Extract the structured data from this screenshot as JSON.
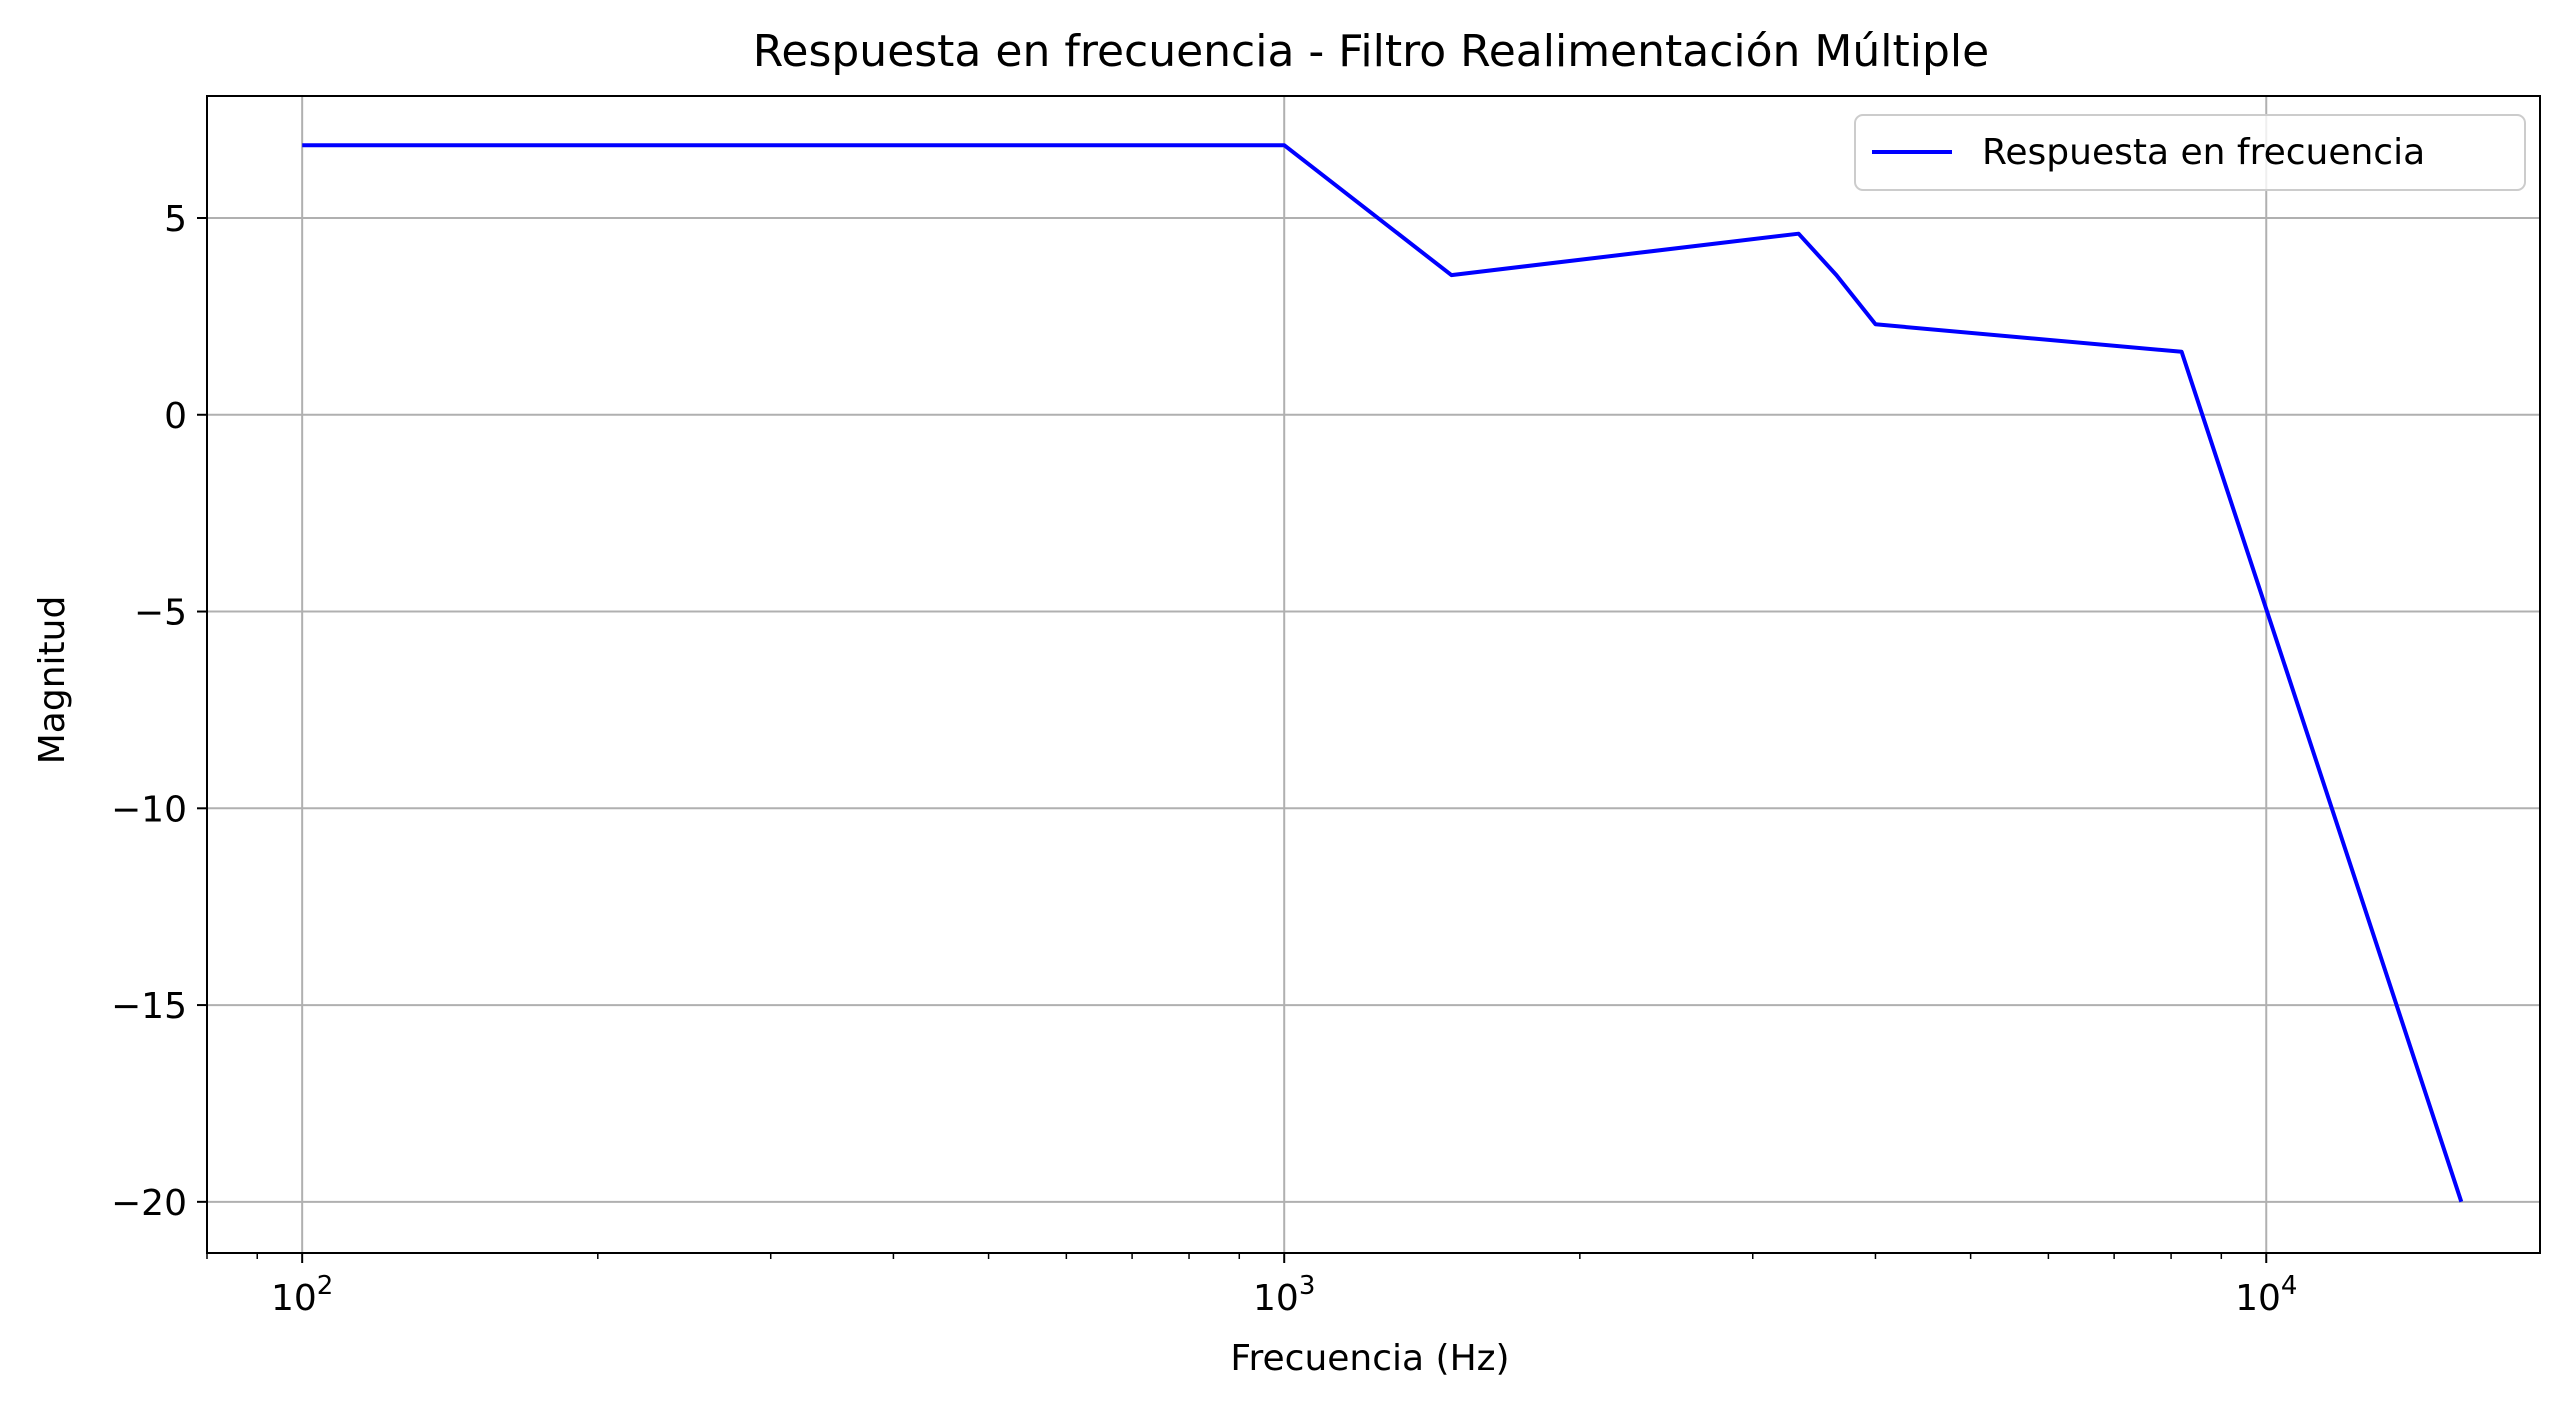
{
  "chart_data": {
    "type": "line",
    "title": "Respuesta en frecuencia - Filtro Realimentación Múltiple",
    "xlabel": "Frecuencia (Hz)",
    "ylabel": "Magnitud",
    "xscale": "log",
    "xlim": [
      80,
      19000
    ],
    "ylim": [
      -21.3,
      8.1
    ],
    "grid": true,
    "legend_position": "top-right",
    "x_ticks": [
      {
        "value": 100,
        "base": "10",
        "exponent": "2"
      },
      {
        "value": 1000,
        "base": "10",
        "exponent": "3"
      },
      {
        "value": 10000,
        "base": "10",
        "exponent": "4"
      }
    ],
    "y_ticks": [
      {
        "value": 5,
        "label": "5"
      },
      {
        "value": 0,
        "label": "0"
      },
      {
        "value": -5,
        "label": "−5"
      },
      {
        "value": -10,
        "label": "−10"
      },
      {
        "value": -15,
        "label": "−15"
      },
      {
        "value": -20,
        "label": "−20"
      }
    ],
    "series": [
      {
        "name": "Respuesta en frecuencia",
        "color": "#0000ff",
        "x": [
          100,
          1000,
          1480,
          3340,
          3650,
          4000,
          8200,
          15800
        ],
        "y": [
          6.85,
          6.85,
          3.55,
          4.6,
          3.55,
          2.3,
          1.6,
          -20.0
        ]
      }
    ]
  }
}
